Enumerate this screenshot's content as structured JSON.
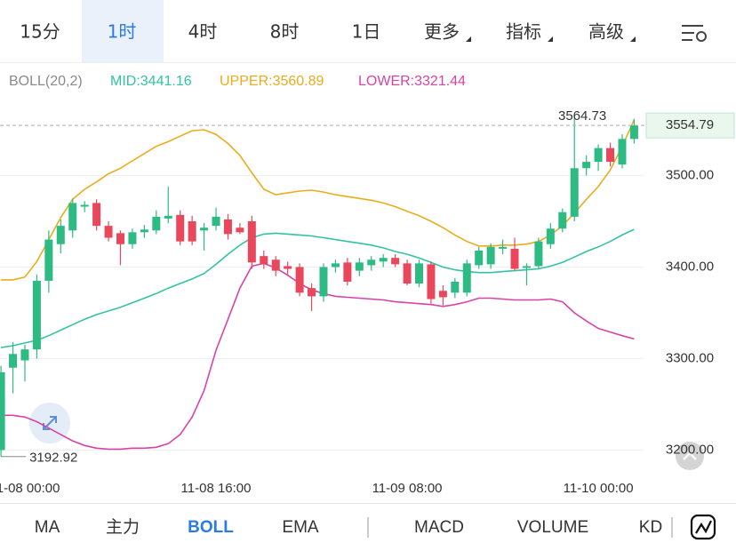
{
  "top_tabs": {
    "items": [
      "15分",
      "1时",
      "4时",
      "8时",
      "1日",
      "更多",
      "指标",
      "高级"
    ],
    "selected": 1
  },
  "bottom_tabs": {
    "items": [
      "MA",
      "主力",
      "BOLL",
      "EMA",
      "MACD",
      "VOLUME",
      "KD"
    ],
    "selected": 2
  },
  "chart_data": {
    "type": "candlestick",
    "indicator": "BOLL(20,2)",
    "legend_labels": [
      "MID:3441.16",
      "UPPER:3560.89",
      "LOWER:3321.44"
    ],
    "categories": [
      null,
      null,
      "11-08 00:00",
      null,
      null,
      null,
      null,
      null,
      null,
      null,
      null,
      null,
      null,
      null,
      null,
      null,
      null,
      null,
      "11-08 16:00",
      null,
      null,
      null,
      null,
      null,
      null,
      null,
      null,
      null,
      null,
      null,
      null,
      null,
      null,
      null,
      "11-09 08:00",
      null,
      null,
      null,
      null,
      null,
      null,
      null,
      null,
      null,
      null,
      null,
      null,
      null,
      null,
      null,
      "11-10 00:00",
      null,
      null,
      null
    ],
    "open": [
      3200,
      3290,
      3298,
      3310,
      3385,
      3425,
      3440,
      3466,
      3470,
      3445,
      3437,
      3425,
      3438,
      3440,
      3453,
      3457,
      3450,
      3440,
      3445,
      3452,
      3443,
      3450,
      3412,
      3408,
      3401,
      3400,
      3377,
      3368,
      3400,
      3405,
      3396,
      3402,
      3406,
      3410,
      3404,
      3382,
      3403,
      3374,
      3372,
      3372,
      3402,
      3403,
      3420,
      3420,
      3399,
      3401,
      3425,
      3442,
      3455,
      3508,
      3515,
      3530,
      3512,
      3540
    ],
    "high": [
      3292,
      3318,
      3315,
      3392,
      3440,
      3452,
      3475,
      3472,
      3474,
      3450,
      3440,
      3442,
      3446,
      3462,
      3488,
      3462,
      3456,
      3448,
      3465,
      3458,
      3448,
      3456,
      3418,
      3412,
      3406,
      3404,
      3382,
      3404,
      3408,
      3410,
      3410,
      3412,
      3414,
      3414,
      3408,
      3408,
      3406,
      3380,
      3388,
      3408,
      3422,
      3426,
      3430,
      3432,
      3404,
      3432,
      3448,
      3464,
      3564.73,
      3522,
      3534,
      3536,
      3545,
      3562
    ],
    "low": [
      3192.92,
      3262,
      3275,
      3300,
      3372,
      3415,
      3432,
      3460,
      3440,
      3428,
      3402,
      3420,
      3432,
      3436,
      3448,
      3424,
      3424,
      3418,
      3440,
      3430,
      3436,
      3398,
      3398,
      3390,
      3392,
      3368,
      3352,
      3362,
      3394,
      3380,
      3390,
      3396,
      3400,
      3400,
      3380,
      3378,
      3360,
      3358,
      3366,
      3368,
      3398,
      3398,
      3414,
      3396,
      3380,
      3398,
      3420,
      3438,
      3450,
      3500,
      3505,
      3510,
      3508,
      3535
    ],
    "close": [
      3285,
      3305,
      3310,
      3385,
      3430,
      3445,
      3470,
      3468,
      3445,
      3432,
      3425,
      3438,
      3441,
      3455,
      3456,
      3428,
      3428,
      3443,
      3455,
      3436,
      3438,
      3405,
      3403,
      3396,
      3398,
      3372,
      3368,
      3400,
      3404,
      3384,
      3405,
      3408,
      3410,
      3403,
      3382,
      3404,
      3365,
      3367,
      3384,
      3404,
      3418,
      3422,
      3422,
      3398,
      3401,
      3428,
      3442,
      3460,
      3508,
      3515,
      3530,
      3515,
      3540,
      3554.79
    ],
    "up_color": "#2dba83",
    "down_color": "#e9485c",
    "series": [
      {
        "name": "MID",
        "color": "#33c2a4",
        "values": [
          3312,
          3314,
          3317,
          3320,
          3325,
          3331,
          3337,
          3343,
          3348,
          3352,
          3356,
          3361,
          3366,
          3371,
          3377,
          3382,
          3387,
          3393,
          3403,
          3414,
          3424,
          3432,
          3436,
          3437,
          3436,
          3435,
          3434,
          3432,
          3430,
          3428,
          3426,
          3424,
          3421,
          3417,
          3414,
          3410,
          3405,
          3400,
          3397,
          3395,
          3394,
          3394,
          3395,
          3396,
          3397,
          3398,
          3401,
          3405,
          3411,
          3417,
          3422,
          3428,
          3435,
          3441.16
        ]
      },
      {
        "name": "UPPER",
        "color": "#e9ad1c",
        "values": [
          3386,
          3386,
          3389,
          3406,
          3430,
          3454,
          3474,
          3485,
          3493,
          3502,
          3508,
          3516,
          3524,
          3532,
          3537,
          3543,
          3549,
          3550,
          3545,
          3535,
          3522,
          3503,
          3485,
          3479,
          3481,
          3483,
          3484,
          3482,
          3479,
          3477,
          3475,
          3473,
          3470,
          3466,
          3461,
          3456,
          3450,
          3443,
          3435,
          3428,
          3423,
          3423,
          3424,
          3424,
          3425,
          3428,
          3435,
          3445,
          3459,
          3474,
          3488,
          3506,
          3532,
          3560.89
        ]
      },
      {
        "name": "LOWER",
        "color": "#d843a8",
        "values": [
          3238,
          3238,
          3236,
          3231,
          3224,
          3217,
          3210,
          3205,
          3202,
          3201,
          3201,
          3202,
          3202,
          3203,
          3207,
          3217,
          3236,
          3265,
          3309,
          3343,
          3377,
          3401,
          3404,
          3399,
          3391,
          3382,
          3375,
          3371,
          3368,
          3367,
          3366,
          3365,
          3364,
          3362,
          3361,
          3360,
          3359,
          3357,
          3359,
          3362,
          3366,
          3366,
          3365,
          3364,
          3364,
          3364,
          3365,
          3362,
          3350,
          3341,
          3333,
          3329,
          3325,
          3321.44
        ]
      }
    ],
    "ylim": [
      3180,
      3585
    ],
    "yticks": [
      {
        "value": 3200,
        "label": "3200.00"
      },
      {
        "value": 3300,
        "label": "3300.00"
      },
      {
        "value": 3400,
        "label": "3400.00"
      },
      {
        "value": 3500,
        "label": "3500.00"
      }
    ],
    "grid": true,
    "high_index": 48,
    "low_index": 0
  }
}
